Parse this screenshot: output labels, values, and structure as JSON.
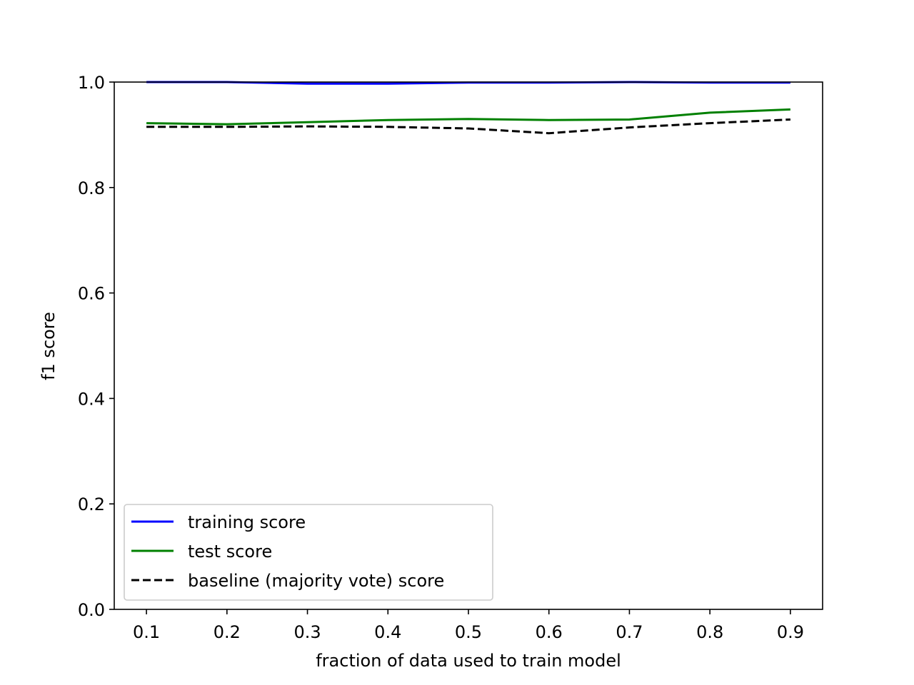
{
  "chart_data": {
    "type": "line",
    "title": "",
    "xlabel": "fraction of data used to train model",
    "ylabel": "f1 score",
    "xlim": [
      0.06,
      0.94
    ],
    "ylim": [
      0.0,
      1.0
    ],
    "x": [
      0.1,
      0.2,
      0.3,
      0.4,
      0.5,
      0.6,
      0.7,
      0.8,
      0.9
    ],
    "xticks": [
      0.1,
      0.2,
      0.3,
      0.4,
      0.5,
      0.6,
      0.7,
      0.8,
      0.9
    ],
    "xtick_labels": [
      "0.1",
      "0.2",
      "0.3",
      "0.4",
      "0.5",
      "0.6",
      "0.7",
      "0.8",
      "0.9"
    ],
    "yticks": [
      0.0,
      0.2,
      0.4,
      0.6,
      0.8,
      1.0
    ],
    "ytick_labels": [
      "0.0",
      "0.2",
      "0.4",
      "0.6",
      "0.8",
      "1.0"
    ],
    "grid": false,
    "legend_position": "lower-left",
    "series": [
      {
        "name": "training score",
        "color": "#0000ff",
        "style": "solid",
        "values": [
          1.0,
          1.0,
          0.997,
          0.997,
          0.999,
          0.999,
          1.0,
          0.999,
          0.999
        ]
      },
      {
        "name": "test score",
        "color": "#008000",
        "style": "solid",
        "values": [
          0.922,
          0.92,
          0.924,
          0.928,
          0.93,
          0.928,
          0.929,
          0.942,
          0.948
        ]
      },
      {
        "name": "baseline (majority vote) score",
        "color": "#000000",
        "style": "dashed",
        "values": [
          0.915,
          0.915,
          0.916,
          0.915,
          0.912,
          0.903,
          0.914,
          0.922,
          0.929
        ]
      }
    ]
  }
}
